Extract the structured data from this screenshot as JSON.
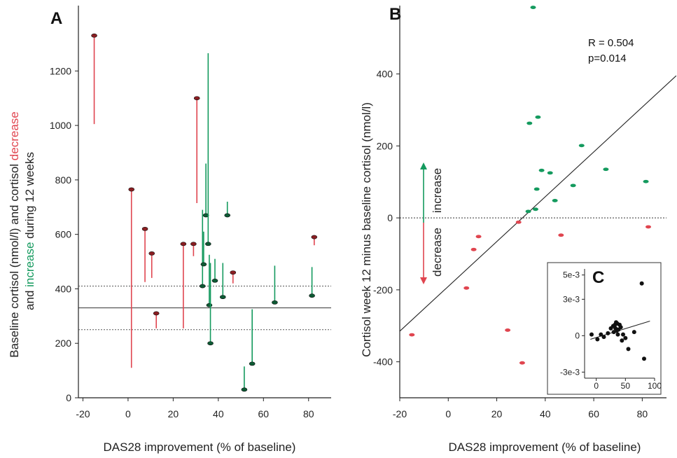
{
  "colors": {
    "red": "#e0454f",
    "green": "#149a5e",
    "dark_red": "#8b1e22",
    "dark_green": "#0d5a34",
    "black": "#111111"
  },
  "chart_data": [
    {
      "panel_label": "A",
      "type": "scatter",
      "xlabel": "DAS28 improvement (% of baseline)",
      "ylabel_line1_parts": [
        "Baseline cortisol (nmol/l) and cortisol ",
        "decrease"
      ],
      "ylabel_line2_parts": [
        "and ",
        "increase",
        " during 12 weeks"
      ],
      "xlim": [
        -22,
        90
      ],
      "ylim": [
        0,
        1440
      ],
      "x_ticks": [
        -20,
        0,
        20,
        40,
        60,
        80
      ],
      "x_tick_labels": [
        "-20",
        "0",
        "20",
        "40",
        "60",
        "80"
      ],
      "y_ticks": [
        0,
        200,
        400,
        600,
        800,
        1000,
        1200
      ],
      "y_tick_labels": [
        "0",
        "200",
        "400",
        "600",
        "800",
        "1000",
        "1200"
      ],
      "reference_lines": {
        "mean": 330,
        "upper_dotted": 410,
        "lower_dotted": 250
      },
      "points": [
        {
          "x": -15,
          "baseline": 1330,
          "end": 1005,
          "direction": "decrease"
        },
        {
          "x": 1.5,
          "baseline": 765,
          "end": 110,
          "direction": "decrease"
        },
        {
          "x": 7.5,
          "baseline": 620,
          "end": 425,
          "direction": "decrease"
        },
        {
          "x": 10.5,
          "baseline": 530,
          "end": 440,
          "direction": "decrease"
        },
        {
          "x": 12.5,
          "baseline": 310,
          "end": 255,
          "direction": "decrease"
        },
        {
          "x": 24.5,
          "baseline": 565,
          "end": 255,
          "direction": "decrease"
        },
        {
          "x": 29,
          "baseline": 565,
          "end": 520,
          "direction": "decrease"
        },
        {
          "x": 30.5,
          "baseline": 1100,
          "end": 715,
          "direction": "decrease"
        },
        {
          "x": 46.5,
          "baseline": 460,
          "end": 420,
          "direction": "decrease"
        },
        {
          "x": 82.5,
          "baseline": 590,
          "end": 560,
          "direction": "decrease"
        },
        {
          "x": 33,
          "baseline": 410,
          "end": 690,
          "direction": "increase"
        },
        {
          "x": 33.5,
          "baseline": 490,
          "end": 610,
          "direction": "increase"
        },
        {
          "x": 34.5,
          "baseline": 670,
          "end": 860,
          "direction": "increase"
        },
        {
          "x": 35.5,
          "baseline": 565,
          "end": 1265,
          "direction": "increase"
        },
        {
          "x": 36,
          "baseline": 340,
          "end": 525,
          "direction": "increase"
        },
        {
          "x": 36.5,
          "baseline": 200,
          "end": 495,
          "direction": "increase"
        },
        {
          "x": 38.5,
          "baseline": 430,
          "end": 510,
          "direction": "increase"
        },
        {
          "x": 42,
          "baseline": 370,
          "end": 495,
          "direction": "increase"
        },
        {
          "x": 44,
          "baseline": 670,
          "end": 720,
          "direction": "increase"
        },
        {
          "x": 51.5,
          "baseline": 30,
          "end": 115,
          "direction": "increase"
        },
        {
          "x": 55,
          "baseline": 125,
          "end": 325,
          "direction": "increase"
        },
        {
          "x": 65,
          "baseline": 350,
          "end": 485,
          "direction": "increase"
        },
        {
          "x": 81.5,
          "baseline": 375,
          "end": 480,
          "direction": "increase"
        }
      ]
    },
    {
      "panel_label": "B",
      "type": "scatter",
      "xlabel": "DAS28 improvement (% of baseline)",
      "ylabel": "Cortisol week 12 minus baseline cortisol (nmol/l)",
      "xlim": [
        -20,
        90
      ],
      "ylim": [
        -500,
        590
      ],
      "x_ticks": [
        -20,
        0,
        20,
        40,
        60,
        80
      ],
      "x_tick_labels": [
        "-20",
        "0",
        "20",
        "40",
        "60",
        "80"
      ],
      "y_ticks": [
        -400,
        -200,
        0,
        200,
        400
      ],
      "y_tick_labels": [
        "-400",
        "-200",
        "0",
        "200",
        "400"
      ],
      "stats": {
        "r": "R = 0.504",
        "p": "p=0.014"
      },
      "arrow_labels": {
        "up": "increase",
        "down": "decrease"
      },
      "regression_line": {
        "x": [
          -20,
          94
        ],
        "y": [
          -315,
          395
        ]
      },
      "series": [
        {
          "name": "decrease",
          "color": "red",
          "x": [
            -15,
            7.5,
            10.5,
            12.5,
            24.5,
            29,
            30.5,
            46.5,
            82.5
          ],
          "y": [
            -325,
            -195,
            -88,
            -52,
            -312,
            -12,
            -403,
            -48,
            -25
          ]
        },
        {
          "name": "increase",
          "color": "green",
          "x": [
            33,
            33.5,
            35,
            36,
            36.5,
            37,
            38.5,
            42,
            44,
            51.5,
            55,
            65,
            81.5
          ],
          "y": [
            18,
            263,
            585,
            24,
            80,
            280,
            132,
            125,
            48,
            90,
            201,
            135,
            101
          ]
        }
      ]
    },
    {
      "panel_label": "C",
      "type": "scatter",
      "xlim": [
        -20,
        100
      ],
      "ylim": [
        -0.0035,
        0.0055
      ],
      "x_ticks": [
        0,
        50,
        100
      ],
      "x_tick_labels": [
        "0",
        "50",
        "100"
      ],
      "y_ticks": [
        -0.003,
        0,
        0.003,
        0.005
      ],
      "y_tick_labels": [
        "-3e-3",
        "0",
        "3e-3",
        "5e-3"
      ],
      "regression_line": {
        "x": [
          -10,
          92
        ],
        "y": [
          -0.0003,
          0.0012
        ]
      },
      "x": [
        -8,
        2,
        8,
        13,
        20,
        25,
        29,
        30,
        32,
        33,
        34,
        35,
        36,
        37,
        38,
        40,
        42,
        44,
        46,
        50,
        55,
        65,
        78,
        82
      ],
      "y": [
        0.0001,
        -0.0003,
        0.0001,
        -0.0001,
        0.0002,
        0.0006,
        0.0008,
        0.0003,
        0.0009,
        0.0006,
        0.0011,
        0.0004,
        0.001,
        0.0001,
        0.0005,
        0.0009,
        0.0007,
        -0.0004,
        0.0001,
        -0.0002,
        -0.0011,
        0.0003,
        0.0043,
        -0.0019
      ]
    }
  ]
}
